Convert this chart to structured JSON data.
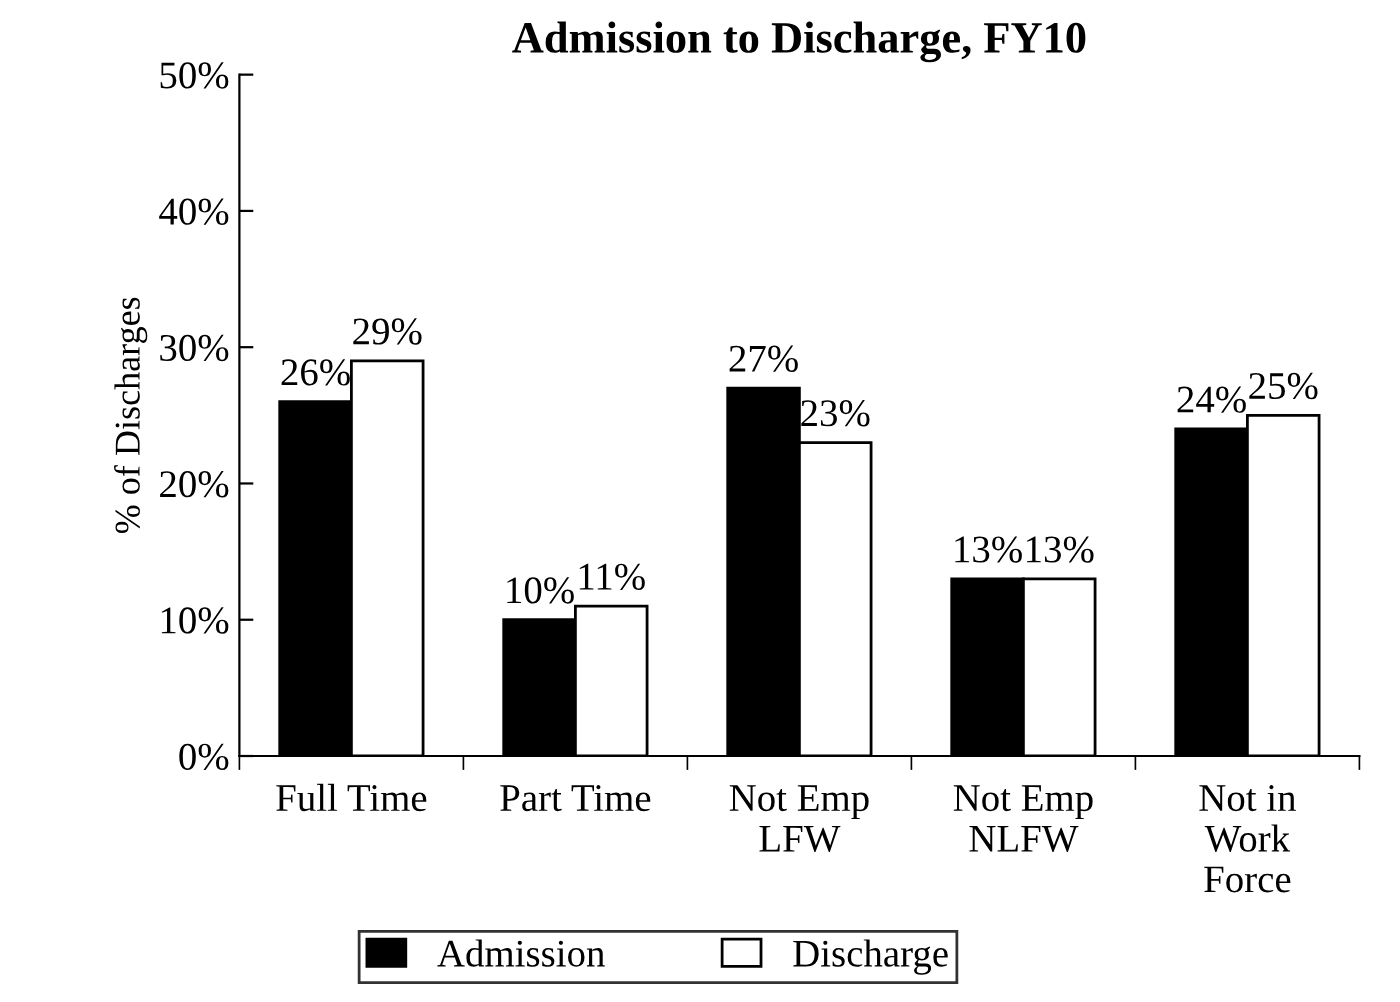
{
  "chart_data": {
    "type": "bar",
    "title": "Admission to Discharge, FY10",
    "ylabel": "% of Discharges",
    "categories": [
      "Full Time",
      "Part Time",
      "Not Emp\nLFW",
      "Not Emp\nNLFW",
      "Not in\nWork\nForce"
    ],
    "series": [
      {
        "name": "Admission",
        "color": "#000000",
        "values": [
          26,
          10,
          27,
          13,
          24
        ],
        "value_labels": [
          "26%",
          "10%",
          "27%",
          "13%",
          "24%"
        ]
      },
      {
        "name": "Discharge",
        "color": "#ffffff",
        "values": [
          29,
          11,
          23,
          13,
          25
        ],
        "value_labels": [
          "29%",
          "11%",
          "23%",
          "13%",
          "25%"
        ]
      }
    ],
    "ylim": [
      0,
      50
    ],
    "yticks": [
      {
        "value": 0,
        "label": "0%"
      },
      {
        "value": 10,
        "label": "10%"
      },
      {
        "value": 20,
        "label": "20%"
      },
      {
        "value": 30,
        "label": "30%"
      },
      {
        "value": 40,
        "label": "40%"
      },
      {
        "value": 50,
        "label": "50%"
      }
    ],
    "grid": false,
    "legend": "bottom"
  }
}
